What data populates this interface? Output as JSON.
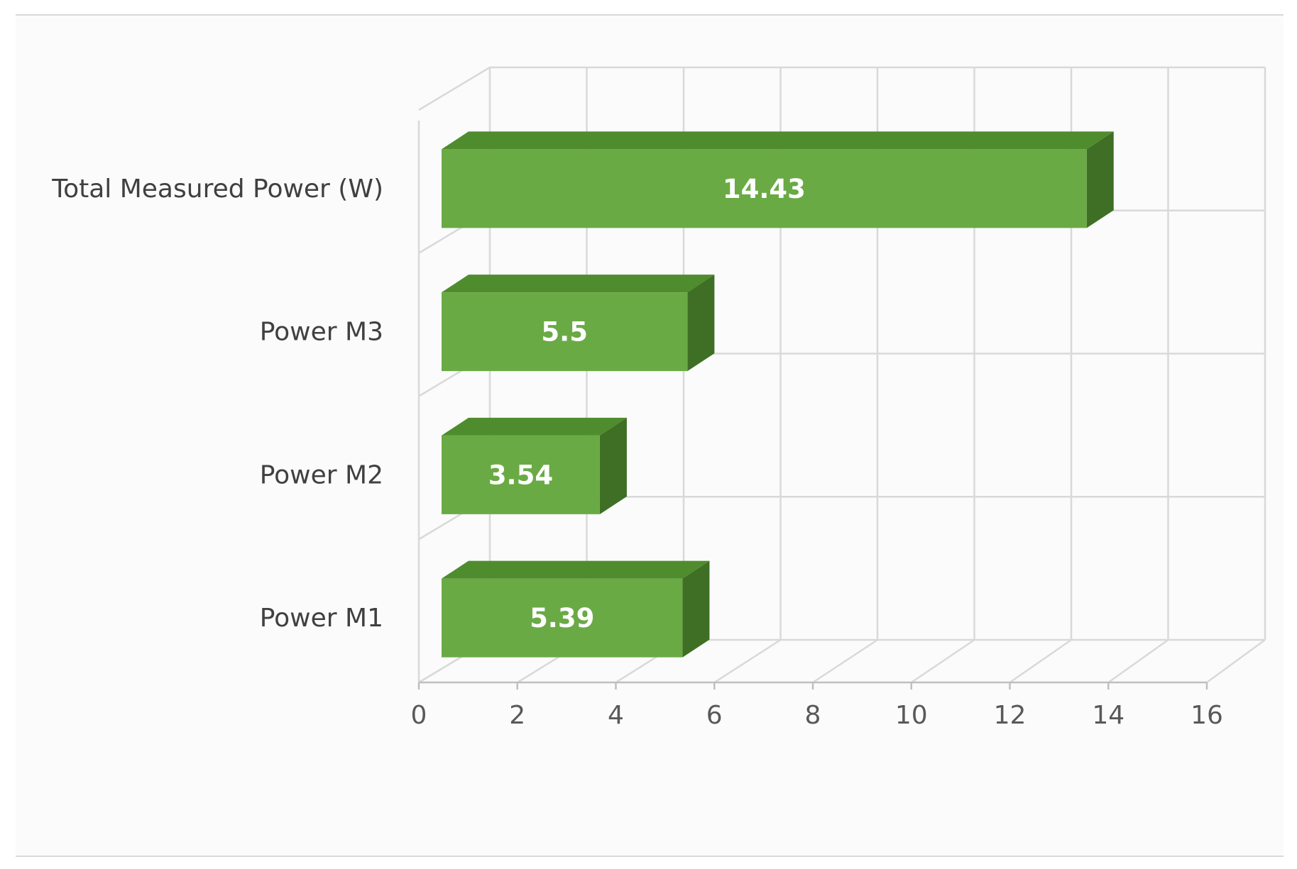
{
  "chart_data": {
    "type": "bar",
    "orientation": "horizontal",
    "style": "3d",
    "categories": [
      "Power M1",
      "Power M2",
      "Power M3",
      "Total Measured Power (W)"
    ],
    "values": [
      5.39,
      3.54,
      5.5,
      14.43
    ],
    "data_labels": [
      "5.39",
      "3.54",
      "5.5",
      "14.43"
    ],
    "title": "",
    "xlabel": "",
    "ylabel": "",
    "xlim": [
      0,
      16
    ],
    "x_ticks": [
      "0",
      "2",
      "4",
      "6",
      "8",
      "10",
      "12",
      "14",
      "16"
    ],
    "grid": true,
    "legend": "none",
    "colors": {
      "bar_front": "#6aaa45",
      "bar_top": "#4f8c2e",
      "bar_side": "#3e6f24",
      "grid": "#d9d9d9",
      "label": "#404040",
      "tick": "#595959",
      "data_label": "#ffffff"
    }
  }
}
